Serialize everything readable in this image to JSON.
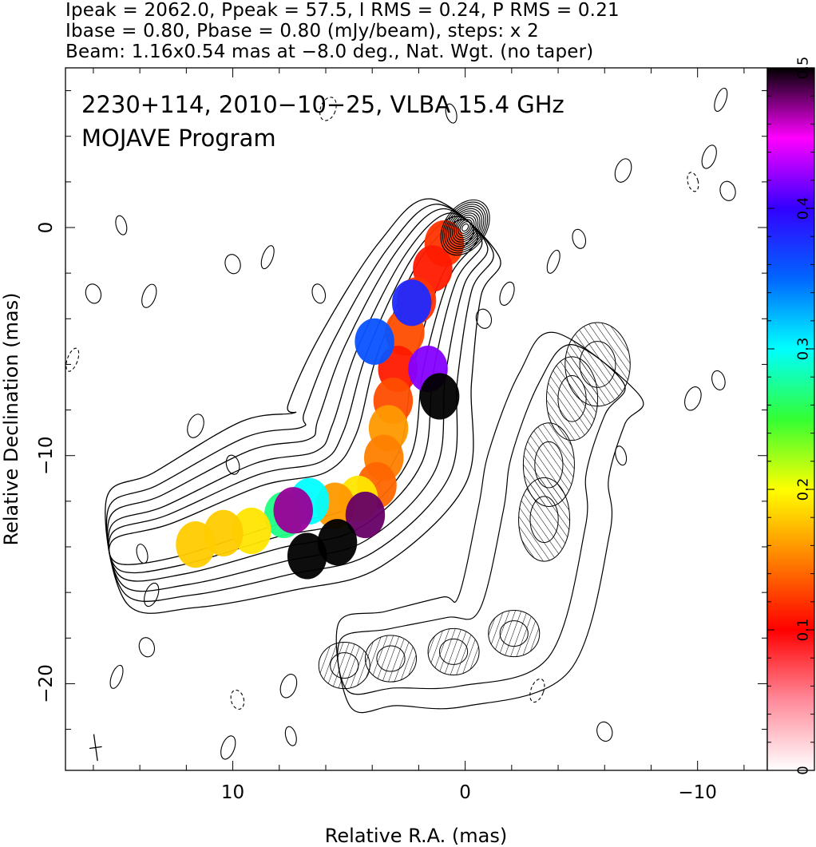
{
  "header": {
    "line1": "Ipeak = 2062.0, Ppeak = 57.5, I RMS = 0.24, P RMS = 0.21",
    "line2": "Ibase = 0.80, Pbase = 0.80 (mJy/beam), steps: x 2",
    "line3": "Beam: 1.16x0.54 mas at −8.0 deg., Nat. Wgt. (no taper)"
  },
  "chart_data": {
    "type": "heatmap",
    "title": "2230+114, 2010−10−25, VLBA 15.4 GHz",
    "subtitle": "MOJAVE Program",
    "xlabel": "Relative R.A. (mas)",
    "ylabel": "Relative Declination (mas)",
    "xlim": [
      17.2,
      -13
    ],
    "ylim": [
      -23.8,
      7
    ],
    "x_ticks": [
      {
        "value": 10,
        "label": "10"
      },
      {
        "value": 0,
        "label": "0"
      },
      {
        "value": -10,
        "label": "−10"
      }
    ],
    "y_ticks": [
      {
        "value": 0,
        "label": "0"
      },
      {
        "value": -10,
        "label": "−10"
      },
      {
        "value": -20,
        "label": "−20"
      }
    ],
    "colorbar": {
      "range": [
        0,
        0.5
      ],
      "ticks": [
        {
          "value": 0,
          "label": "0"
        },
        {
          "value": 0.1,
          "label": "0.1"
        },
        {
          "value": 0.2,
          "label": "0.2"
        },
        {
          "value": 0.3,
          "label": "0.3"
        },
        {
          "value": 0.4,
          "label": "0.4"
        },
        {
          "value": 0.5,
          "label": "0.5"
        }
      ],
      "stops": [
        {
          "value": 0.0,
          "color": "#ffffff"
        },
        {
          "value": 0.05,
          "color": "#ff8a9a"
        },
        {
          "value": 0.1,
          "color": "#ff0000"
        },
        {
          "value": 0.15,
          "color": "#ff8000"
        },
        {
          "value": 0.2,
          "color": "#ffff00"
        },
        {
          "value": 0.25,
          "color": "#33ff33"
        },
        {
          "value": 0.3,
          "color": "#00ffff"
        },
        {
          "value": 0.35,
          "color": "#0066ff"
        },
        {
          "value": 0.4,
          "color": "#3300ff"
        },
        {
          "value": 0.45,
          "color": "#ff00ff"
        },
        {
          "value": 0.5,
          "color": "#000000"
        }
      ]
    },
    "core": {
      "x": 0,
      "y": 0
    },
    "total_intensity_jet": {
      "ridge": [
        [
          0,
          0
        ],
        [
          1.5,
          -1.8
        ],
        [
          3.0,
          -5.8
        ],
        [
          3.8,
          -9.5
        ],
        [
          5.5,
          -11.5
        ],
        [
          8.5,
          -12.2
        ],
        [
          12.5,
          -13.7
        ],
        [
          15.0,
          -14.2
        ]
      ],
      "widths": [
        1.0,
        1.3,
        1.8,
        2.2,
        2.0,
        2.0,
        1.6,
        1.2
      ],
      "contour_levels": [
        0.8,
        1.6,
        3.2,
        6.4,
        12.8,
        25.6,
        51.2,
        102.4,
        204.8,
        409.6,
        819.2,
        1638.4
      ]
    },
    "fractional_polarization_patches": [
      {
        "x": 0.9,
        "y": -0.7,
        "v": 0.12
      },
      {
        "x": 1.4,
        "y": -1.8,
        "v": 0.11
      },
      {
        "x": 2.1,
        "y": -3.2,
        "v": 0.12
      },
      {
        "x": 2.6,
        "y": -4.6,
        "v": 0.13
      },
      {
        "x": 2.9,
        "y": -6.2,
        "v": 0.11
      },
      {
        "x": 3.1,
        "y": -7.6,
        "v": 0.13
      },
      {
        "x": 3.3,
        "y": -8.8,
        "v": 0.16
      },
      {
        "x": 3.5,
        "y": -10.1,
        "v": 0.15
      },
      {
        "x": 3.8,
        "y": -11.3,
        "v": 0.14
      },
      {
        "x": 4.6,
        "y": -11.9,
        "v": 0.19
      },
      {
        "x": 5.6,
        "y": -12.2,
        "v": 0.16
      },
      {
        "x": 6.7,
        "y": -12.0,
        "v": 0.3
      },
      {
        "x": 7.8,
        "y": -12.6,
        "v": 0.27
      },
      {
        "x": 9.2,
        "y": -13.3,
        "v": 0.19
      },
      {
        "x": 10.4,
        "y": -13.4,
        "v": 0.18
      },
      {
        "x": 11.6,
        "y": -13.9,
        "v": 0.18
      },
      {
        "x": 3.9,
        "y": -5.0,
        "v": 0.36
      },
      {
        "x": 1.6,
        "y": -6.2,
        "v": 0.42
      },
      {
        "x": 1.1,
        "y": -7.4,
        "v": 0.5
      },
      {
        "x": 2.3,
        "y": -3.3,
        "v": 0.38
      },
      {
        "x": 4.3,
        "y": -12.6,
        "v": 0.48
      },
      {
        "x": 5.5,
        "y": -13.8,
        "v": 0.5
      },
      {
        "x": 6.8,
        "y": -14.4,
        "v": 0.5
      },
      {
        "x": 7.4,
        "y": -12.4,
        "v": 0.47
      }
    ],
    "polarized_intensity_contours": [
      {
        "x": -5.7,
        "y": -6.0
      },
      {
        "x": -4.6,
        "y": -7.5
      },
      {
        "x": -3.6,
        "y": -10.4
      },
      {
        "x": -3.4,
        "y": -12.8
      },
      {
        "x": -2.1,
        "y": -17.8
      },
      {
        "x": 0.5,
        "y": -18.6
      },
      {
        "x": 3.2,
        "y": -18.9
      },
      {
        "x": 5.2,
        "y": -19.2
      }
    ],
    "field_islands": [
      {
        "x": 14.8,
        "y": 0.1
      },
      {
        "x": 13.6,
        "y": -3.0
      },
      {
        "x": 16.0,
        "y": -2.9
      },
      {
        "x": 16.9,
        "y": -5.8
      },
      {
        "x": 10.0,
        "y": -10.4
      },
      {
        "x": 11.6,
        "y": -8.7
      },
      {
        "x": 13.9,
        "y": -14.3
      },
      {
        "x": 13.5,
        "y": -16.1
      },
      {
        "x": 13.7,
        "y": -18.4
      },
      {
        "x": 15.0,
        "y": -19.7
      },
      {
        "x": 9.8,
        "y": -20.7
      },
      {
        "x": 7.6,
        "y": -20.1
      },
      {
        "x": 7.5,
        "y": -22.3
      },
      {
        "x": 10.2,
        "y": -22.8
      },
      {
        "x": 10.0,
        "y": -1.6
      },
      {
        "x": 8.5,
        "y": -1.3
      },
      {
        "x": 6.3,
        "y": -2.9
      },
      {
        "x": 5.9,
        "y": 5.2
      },
      {
        "x": 0.6,
        "y": 5.0
      },
      {
        "x": -1.8,
        "y": -2.9
      },
      {
        "x": -0.8,
        "y": -4.0
      },
      {
        "x": -3.8,
        "y": -1.5
      },
      {
        "x": -4.9,
        "y": -0.5
      },
      {
        "x": -6.8,
        "y": 2.5
      },
      {
        "x": -9.8,
        "y": 2.0
      },
      {
        "x": -10.5,
        "y": 3.1
      },
      {
        "x": -11.3,
        "y": 1.6
      },
      {
        "x": -11.0,
        "y": 5.6
      },
      {
        "x": -10.9,
        "y": -6.7
      },
      {
        "x": -9.8,
        "y": -7.5
      },
      {
        "x": -6.7,
        "y": -10.0
      },
      {
        "x": -3.1,
        "y": -20.3
      },
      {
        "x": -6.0,
        "y": -22.1
      }
    ],
    "beam": {
      "x": 15.9,
      "y": -22.8,
      "major": 1.16,
      "minor": 0.54,
      "pa": -8.0
    }
  }
}
